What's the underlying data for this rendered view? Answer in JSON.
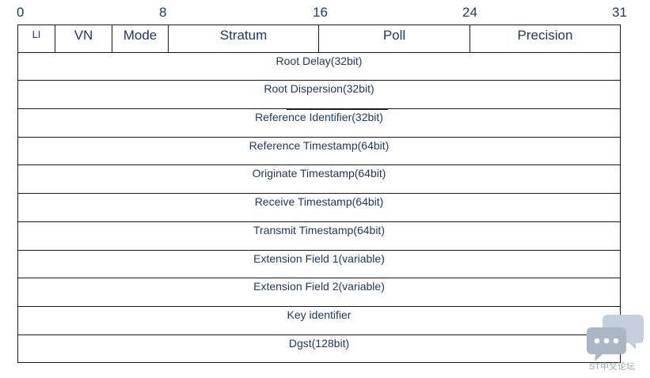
{
  "bit_labels": [
    "0",
    "8",
    "16",
    "24",
    "31"
  ],
  "header_fields": [
    "LI",
    "VN",
    "Mode",
    "Stratum",
    "Poll",
    "Precision"
  ],
  "rows": [
    "Root Delay(32bit)",
    "Root Dispersion(32bit)",
    "Reference Identifier(32bit)",
    "Reference Timestamp(64bit)",
    "Originate Timestamp(64bit)",
    "Receive Timestamp(64bit)",
    "Transmit Timestamp(64bit)",
    "Extension Field 1(variable)",
    "Extension Field 2(variable)",
    "Key identifier",
    "Dgst(128bit)"
  ],
  "watermark": {
    "text": "ST中文论坛",
    "icon": "chat-bubbles-icon"
  },
  "colors": {
    "text": "#1f3864",
    "border": "#1a1a1a",
    "watermark": "#9aa8b8"
  }
}
